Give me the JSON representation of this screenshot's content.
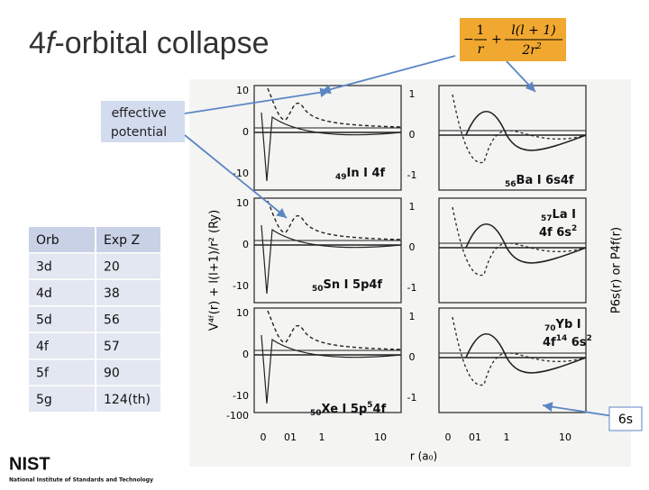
{
  "title": {
    "prefix": "4",
    "italic": "f",
    "suffix": "-orbital collapse"
  },
  "formula": {
    "minus": "−",
    "n1": "1",
    "d1": "r",
    "plus": "+",
    "n2": "l(l + 1)",
    "d2": "2r",
    "d2_exp": "2"
  },
  "callout": {
    "line1": "effective",
    "line2": "potential"
  },
  "table": {
    "header": [
      "Orb",
      "Exp Z"
    ],
    "rows": [
      [
        "3d",
        "20"
      ],
      [
        "4d",
        "38"
      ],
      [
        "5d",
        "56"
      ],
      [
        "4f",
        "57"
      ],
      [
        "5f",
        "90"
      ],
      [
        "5g",
        "124(th)"
      ]
    ]
  },
  "figure": {
    "panels": [
      {
        "sub": "49",
        "text": "In I 4f"
      },
      {
        "sub": "56",
        "text": "Ba I 6s4f"
      },
      {
        "sub": "57",
        "text": "La I",
        "line2": "4f 6s",
        "sup2": "2"
      },
      {
        "sub": "50",
        "text": "Sn I 5p4f"
      },
      {
        "sub": "70",
        "text": "Yb I",
        "line2": "4f",
        "sup1": "14",
        "line2b": " 6s",
        "sup2": "2"
      },
      {
        "sub": "50",
        "text": "Xe I 5p",
        "sup": "5",
        "tail": "4f"
      }
    ],
    "left_yticks": [
      "10",
      "0",
      "-10",
      "-100"
    ],
    "right_yticks": [
      "1",
      "0",
      "-1"
    ],
    "xticks": [
      "0",
      "01",
      "1",
      "10"
    ],
    "ylabel": "V⁴ᶠ(r) + l(l+1)/r² (Ry)",
    "ylabel_right": "P6s(r)  or  P4f(r)",
    "xlabel": "r (a₀)"
  },
  "note_6s": "6s",
  "logo": {
    "name": "NIST",
    "full": "National Institute of Standards and Technology"
  }
}
